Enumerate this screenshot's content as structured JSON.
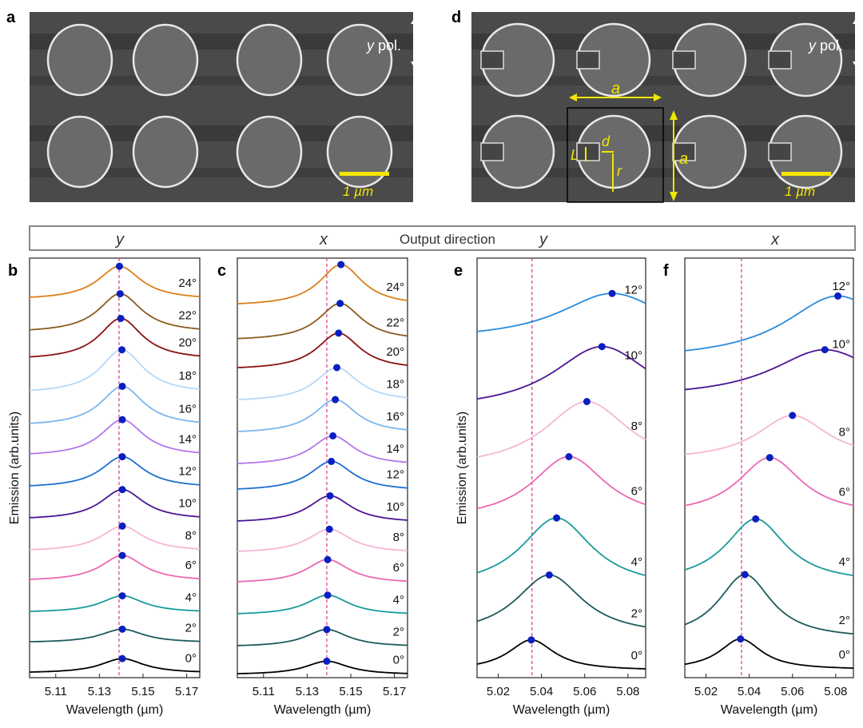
{
  "panel_letters": {
    "a": "a",
    "b": "b",
    "c": "c",
    "d": "d",
    "e": "e",
    "f": "f"
  },
  "sem_a": {
    "pol_label_italic": "y",
    "pol_label": " pol.",
    "scale_bar": "1 µm"
  },
  "sem_d": {
    "pol_label_italic": "y",
    "pol_label": " pol.",
    "scale_bar": "1 µm",
    "labels": {
      "a_horizontal": "a",
      "a_vertical": "a",
      "d": "d",
      "L": "L",
      "r": "r"
    }
  },
  "output_bar": {
    "title": "Output direction",
    "dirs": [
      "y",
      "x",
      "y",
      "x"
    ]
  },
  "colors": {
    "dot": "#0a1fbf",
    "dashed": "#e0338f",
    "scale_bar": "#f2e600"
  },
  "chart_data": [
    {
      "id": "b",
      "type": "line",
      "xlabel": "Wavelength (µm)",
      "ylabel": "Emission (arb.units)",
      "xlim": [
        5.098,
        5.176
      ],
      "ylim": [
        0,
        13
      ],
      "xticks": [
        5.11,
        5.13,
        5.15,
        5.17
      ],
      "xtick_labels": [
        "5.11",
        "5.13",
        "5.15",
        "5.17"
      ],
      "reference_line": 5.139,
      "gamma": 0.012,
      "series": [
        {
          "name": "0°",
          "color": "#000000",
          "base": 0.17,
          "amp": 0.45,
          "peak": 5.1405
        },
        {
          "name": "2°",
          "color": "#1d5a5c",
          "base": 1.11,
          "amp": 0.42,
          "peak": 5.1405
        },
        {
          "name": "4°",
          "color": "#1a9a99",
          "base": 2.05,
          "amp": 0.52,
          "peak": 5.1405
        },
        {
          "name": "6°",
          "color": "#ea68b3",
          "base": 3.04,
          "amp": 0.8,
          "peak": 5.1405
        },
        {
          "name": "8°",
          "color": "#f5b6d6",
          "base": 3.96,
          "amp": 0.79,
          "peak": 5.1405
        },
        {
          "name": "10°",
          "color": "#4b1593",
          "base": 4.95,
          "amp": 0.94,
          "peak": 5.1405
        },
        {
          "name": "12°",
          "color": "#1d6fd0",
          "base": 5.94,
          "amp": 0.97,
          "peak": 5.1405
        },
        {
          "name": "14°",
          "color": "#b276ea",
          "base": 6.93,
          "amp": 1.14,
          "peak": 5.1405
        },
        {
          "name": "16°",
          "color": "#7ab6ee",
          "base": 7.87,
          "amp": 1.24,
          "peak": 5.1405
        },
        {
          "name": "18°",
          "color": "#b8d8f5",
          "base": 8.89,
          "amp": 1.36,
          "peak": 5.1403
        },
        {
          "name": "20°",
          "color": "#8b1212",
          "base": 9.93,
          "amp": 1.29,
          "peak": 5.1398
        },
        {
          "name": "22°",
          "color": "#8c5a1e",
          "base": 10.77,
          "amp": 1.21,
          "peak": 5.1395
        },
        {
          "name": "24°",
          "color": "#d9801c",
          "base": 11.78,
          "amp": 1.04,
          "peak": 5.1392
        }
      ]
    },
    {
      "id": "c",
      "type": "line",
      "xlabel": "Wavelength (µm)",
      "ylabel": "",
      "xlim": [
        5.098,
        5.176
      ],
      "ylim": [
        0,
        13
      ],
      "xticks": [
        5.11,
        5.13,
        5.15,
        5.17
      ],
      "xtick_labels": [
        "5.11",
        "5.13",
        "5.15",
        "5.17"
      ],
      "reference_line": 5.139,
      "gamma": 0.012,
      "series": [
        {
          "name": "0°",
          "color": "#000000",
          "base": 0.12,
          "amp": 0.42,
          "peak": 5.139
        },
        {
          "name": "2°",
          "color": "#1d5a5c",
          "base": 0.99,
          "amp": 0.54,
          "peak": 5.139
        },
        {
          "name": "4°",
          "color": "#1a9a99",
          "base": 1.98,
          "amp": 0.62,
          "peak": 5.1394
        },
        {
          "name": "6°",
          "color": "#ea68b3",
          "base": 2.97,
          "amp": 0.74,
          "peak": 5.1394
        },
        {
          "name": "8°",
          "color": "#f5b6d6",
          "base": 3.91,
          "amp": 0.74,
          "peak": 5.1402
        },
        {
          "name": "10°",
          "color": "#4b1593",
          "base": 4.85,
          "amp": 0.84,
          "peak": 5.1405
        },
        {
          "name": "12°",
          "color": "#1d6fd0",
          "base": 5.84,
          "amp": 0.92,
          "peak": 5.1411
        },
        {
          "name": "14°",
          "color": "#b276ea",
          "base": 6.63,
          "amp": 0.92,
          "peak": 5.1418
        },
        {
          "name": "16°",
          "color": "#7ab6ee",
          "base": 7.62,
          "amp": 1.06,
          "peak": 5.1429
        },
        {
          "name": "18°",
          "color": "#b8d8f5",
          "base": 8.61,
          "amp": 1.06,
          "peak": 5.1436
        },
        {
          "name": "20°",
          "color": "#8b1212",
          "base": 9.6,
          "amp": 1.14,
          "peak": 5.1444
        },
        {
          "name": "22°",
          "color": "#8c5a1e",
          "base": 10.5,
          "amp": 1.16,
          "peak": 5.1451
        },
        {
          "name": "24°",
          "color": "#d9801c",
          "base": 11.58,
          "amp": 1.29,
          "peak": 5.1455
        }
      ]
    },
    {
      "id": "e",
      "type": "line",
      "xlabel": "Wavelength (µm)",
      "ylabel": "Emission (arb.units)",
      "xlim": [
        5.0102,
        5.0882
      ],
      "ylim": [
        0,
        13
      ],
      "xticks": [
        5.02,
        5.04,
        5.06,
        5.08
      ],
      "xtick_labels": [
        "5.02",
        "5.04",
        "5.06",
        "5.08"
      ],
      "reference_line": 5.0356,
      "series": [
        {
          "name": "0°",
          "color": "#000000",
          "base": 0.4,
          "amp": 0.95,
          "peak": 5.0353,
          "gamma": 0.013
        },
        {
          "name": "2°",
          "color": "#1d5a5c",
          "base": 1.7,
          "amp": 1.9,
          "peak": 5.0436,
          "gamma": 0.019
        },
        {
          "name": "4°",
          "color": "#1a9a99",
          "base": 3.2,
          "amp": 2.2,
          "peak": 5.047,
          "gamma": 0.02
        },
        {
          "name": "6°",
          "color": "#ea68b3",
          "base": 5.2,
          "amp": 2.0,
          "peak": 5.0527,
          "gamma": 0.021
        },
        {
          "name": "8°",
          "color": "#f5b6d6",
          "base": 6.8,
          "amp": 2.1,
          "peak": 5.061,
          "gamma": 0.024
        },
        {
          "name": "10°",
          "color": "#4b1593",
          "base": 8.6,
          "amp": 2.0,
          "peak": 5.068,
          "gamma": 0.028
        },
        {
          "name": "12°",
          "color": "#2a8ad9",
          "base": 10.7,
          "amp": 1.45,
          "peak": 5.0727,
          "gamma": 0.03
        }
      ]
    },
    {
      "id": "f",
      "type": "line",
      "xlabel": "Wavelength (µm)",
      "ylabel": "",
      "xlim": [
        5.0102,
        5.0882
      ],
      "ylim": [
        0,
        13
      ],
      "xticks": [
        5.02,
        5.04,
        5.06,
        5.08
      ],
      "xtick_labels": [
        "5.02",
        "5.04",
        "5.06",
        "5.08"
      ],
      "reference_line": 5.0364,
      "series": [
        {
          "name": "0°",
          "color": "#000000",
          "base": 0.4,
          "amp": 0.95,
          "peak": 5.036,
          "gamma": 0.012
        },
        {
          "name": "2°",
          "color": "#1d5a5c",
          "base": 1.6,
          "amp": 2.0,
          "peak": 5.038,
          "gamma": 0.015
        },
        {
          "name": "4°",
          "color": "#1a9a99",
          "base": 3.3,
          "amp": 2.0,
          "peak": 5.043,
          "gamma": 0.017
        },
        {
          "name": "6°",
          "color": "#ea68b3",
          "base": 5.3,
          "amp": 1.8,
          "peak": 5.0495,
          "gamma": 0.018
        },
        {
          "name": "8°",
          "color": "#f5b6d6",
          "base": 6.9,
          "amp": 1.4,
          "peak": 5.06,
          "gamma": 0.02
        },
        {
          "name": "10°",
          "color": "#4b1593",
          "base": 8.9,
          "amp": 1.5,
          "peak": 5.075,
          "gamma": 0.03
        },
        {
          "name": "12°",
          "color": "#2a8ad9",
          "base": 10.1,
          "amp": 2.0,
          "peak": 5.081,
          "gamma": 0.03
        }
      ]
    }
  ]
}
